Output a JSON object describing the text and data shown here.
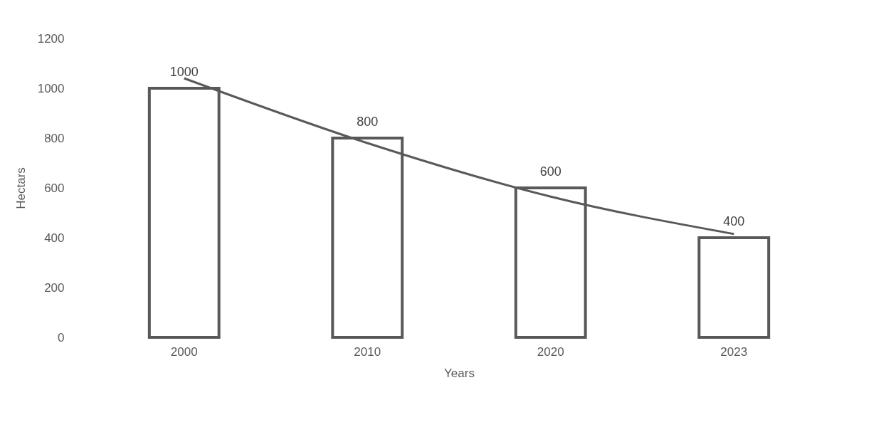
{
  "chart_data": {
    "type": "bar",
    "xlabel": "Years",
    "ylabel": "Hectars",
    "categories": [
      "2000",
      "2010",
      "2020",
      "2023"
    ],
    "series": [
      {
        "color": "#595959",
        "values": [
          1000,
          800,
          600,
          400
        ],
        "value_labels": [
          "1000",
          "800",
          "600",
          "400"
        ]
      },
      {
        "type": "line",
        "color": "#595959",
        "values": [
          1040,
          780,
          565,
          415
        ]
      }
    ],
    "ylim": [
      0,
      1200
    ],
    "yticks": [
      0,
      200,
      400,
      600,
      800,
      1000,
      1200
    ],
    "grid": false
  }
}
